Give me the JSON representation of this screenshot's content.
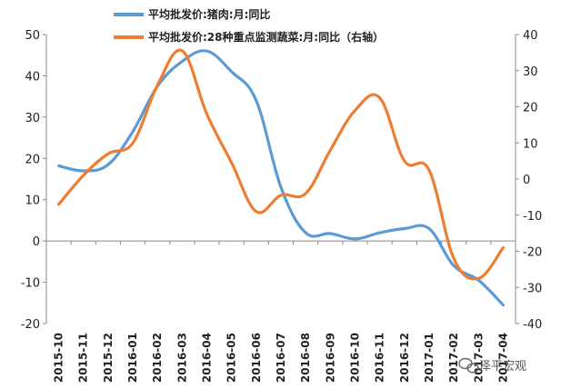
{
  "chart_data": {
    "type": "line",
    "categories": [
      "2015-10",
      "2015-11",
      "2015-12",
      "2016-01",
      "2016-02",
      "2016-03",
      "2016-04",
      "2016-05",
      "2016-06",
      "2016-07",
      "2016-08",
      "2016-09",
      "2016-10",
      "2016-11",
      "2016-12",
      "2017-01",
      "2017-02",
      "2017-03",
      "2017-04"
    ],
    "series": [
      {
        "name": "平均批发价:猪肉:月:同比",
        "axis": "left",
        "color": "#5B9BD5",
        "values": [
          18.2,
          17.0,
          18.5,
          26.5,
          37.5,
          43.5,
          46.0,
          41.0,
          34.0,
          13.0,
          2.0,
          1.8,
          0.5,
          2.0,
          3.0,
          3.0,
          -6.0,
          -9.5,
          -15.5
        ]
      },
      {
        "name": "平均批发价:28种重点监测蔬菜:月:同比（右轴）",
        "axis": "right",
        "color": "#ED7D31",
        "values": [
          -7.0,
          1.0,
          7.0,
          10.0,
          26.0,
          35.5,
          18.0,
          4.5,
          -9.0,
          -4.5,
          -4.0,
          8.0,
          19.0,
          22.5,
          5.0,
          2.5,
          -22.0,
          -27.5,
          -19.0
        ]
      }
    ],
    "left_axis": {
      "ylim": [
        -20,
        50
      ],
      "ticks": [
        "-20",
        "-10",
        "0",
        "10",
        "20",
        "30",
        "40",
        "50"
      ]
    },
    "right_axis": {
      "ylim": [
        -40,
        40
      ],
      "ticks": [
        "-40",
        "-30",
        "-20",
        "-10",
        "0",
        "10",
        "20",
        "30",
        "40"
      ]
    },
    "legend_position": "top-center",
    "grid": false
  },
  "watermark": {
    "text": "泽平宏观",
    "icon": "wechat-icon"
  }
}
